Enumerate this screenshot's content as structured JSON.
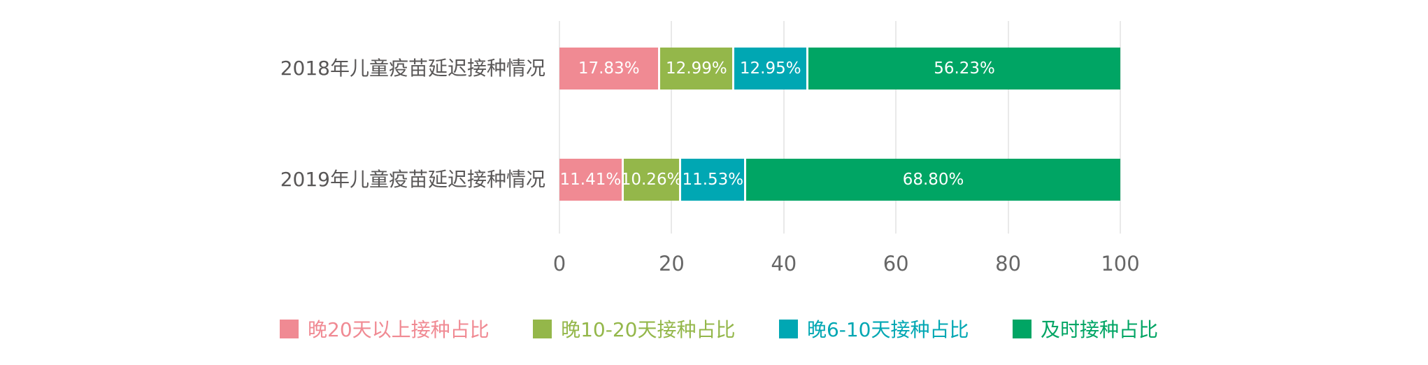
{
  "chart_data": {
    "type": "bar",
    "orientation": "horizontal",
    "stacked": true,
    "title": "",
    "categories": [
      "2018年儿童疫苗延迟接种情况",
      "2019年儿童疫苗延迟接种情况"
    ],
    "series": [
      {
        "name": "晚20天以上接种占比",
        "color": "#F08A93",
        "values": [
          17.83,
          11.41
        ],
        "labels": [
          "17.83%",
          "11.41%"
        ]
      },
      {
        "name": "晚10-20天接种占比",
        "color": "#94B74A",
        "values": [
          12.99,
          10.26
        ],
        "labels": [
          "12.99%",
          "10.26%"
        ]
      },
      {
        "name": "晚6-10天接种占比",
        "color": "#00A7B3",
        "values": [
          12.95,
          11.53
        ],
        "labels": [
          "12.95%",
          "11.53%"
        ]
      },
      {
        "name": "及时接种占比",
        "color": "#00A564",
        "values": [
          56.23,
          68.8
        ],
        "labels": [
          "56.23%",
          "68.80%"
        ]
      }
    ],
    "xlim": [
      0,
      100
    ],
    "x_ticks": [
      "0",
      "20",
      "40",
      "60",
      "80",
      "100"
    ],
    "grid": "vertical",
    "legend_position": "bottom",
    "value_label_color": "#ffffff"
  },
  "styles": {
    "background": "#ffffff",
    "grid_color": "#e9e9e9",
    "axis_text_color": "#666666",
    "category_text_color": "#595757"
  }
}
